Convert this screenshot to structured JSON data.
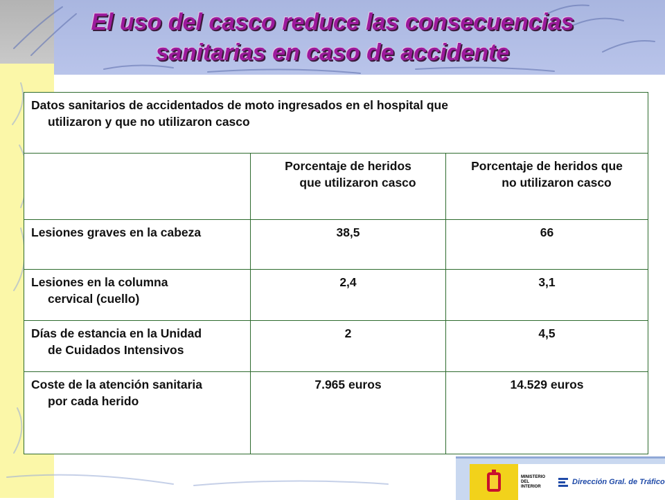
{
  "title": {
    "line1": "El uso del casco reduce las consecuencias",
    "line2": "sanitarias en caso de accidente"
  },
  "table": {
    "caption": {
      "line1": "Datos sanitarios de accidentados de moto ingresados en el hospital que",
      "line2": "utilizaron y que no utilizaron casco"
    },
    "headers": [
      {
        "line1": "Porcentaje de heridos",
        "line2": "que utilizaron casco"
      },
      {
        "line1": "Porcentaje de heridos que",
        "line2": "no utilizaron casco"
      }
    ],
    "rows": [
      {
        "label1": "Lesiones graves en la cabeza",
        "label2": "",
        "with": "38,5",
        "without": "66"
      },
      {
        "label1": "Lesiones en la columna",
        "label2": "cervical (cuello)",
        "with": "2,4",
        "without": "3,1"
      },
      {
        "label1": "Días de estancia en la Unidad",
        "label2": "de Cuidados Intensivos",
        "with": "2",
        "without": "4,5"
      },
      {
        "label1": "Coste de la atención sanitaria",
        "label2": "por cada herido",
        "with": "7.965 euros",
        "without": "14.529 euros"
      }
    ]
  },
  "footer": {
    "ministerio_line1": "MINISTERIO",
    "ministerio_line2": "DEL INTERIOR",
    "dgt_label": "Dirección Gral. de Tráfico"
  },
  "colors": {
    "title": "#9c1a9c",
    "table_border": "#2d6a2d",
    "header_band": "#b3bfe6",
    "left_strip": "#fbf7a8"
  }
}
